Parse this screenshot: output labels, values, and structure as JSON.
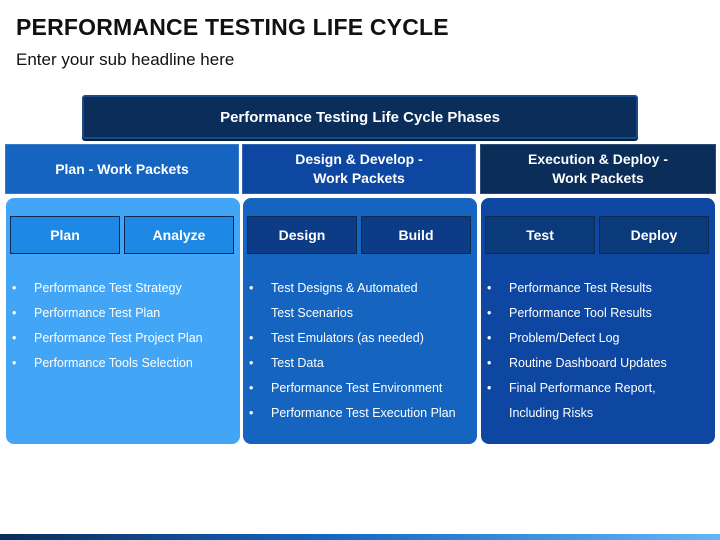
{
  "title": "PERFORMANCE TESTING LIFE CYCLE",
  "subtitle": "Enter your sub headline here",
  "phases_header": "Performance Testing Life Cycle Phases",
  "columns": [
    {
      "header_line1": "Plan - Work Packets",
      "header_line2": "",
      "sub": [
        "Plan",
        "Analyze"
      ],
      "items": [
        "Performance Test Strategy",
        "Performance Test Plan",
        "Performance Test Project Plan",
        "Performance Tools Selection"
      ],
      "colors": {
        "header": "#1565c0",
        "panel": "#42a5f5",
        "button": "#1e88e5"
      }
    },
    {
      "header_line1": "Design & Develop -",
      "header_line2": "Work Packets",
      "sub": [
        "Design",
        "Build"
      ],
      "items": [
        "Test Designs & Automated Test Scenarios",
        "Test Emulators (as needed)",
        "Test Data",
        "Performance Test Environment",
        "Performance Test Execution Plan"
      ],
      "colors": {
        "header": "#0d47a1",
        "panel": "#1565c0",
        "button": "#0d3c86"
      }
    },
    {
      "header_line1": "Execution & Deploy -",
      "header_line2": "Work Packets",
      "sub": [
        "Test",
        "Deploy"
      ],
      "items": [
        "Performance Test Results",
        "Performance Tool Results",
        "Problem/Defect Log",
        "Routine Dashboard Updates",
        "Final Performance Report, Including Risks"
      ],
      "colors": {
        "header": "#0a2d5a",
        "panel": "#0d47a1",
        "button": "#0a3a7a"
      }
    }
  ]
}
